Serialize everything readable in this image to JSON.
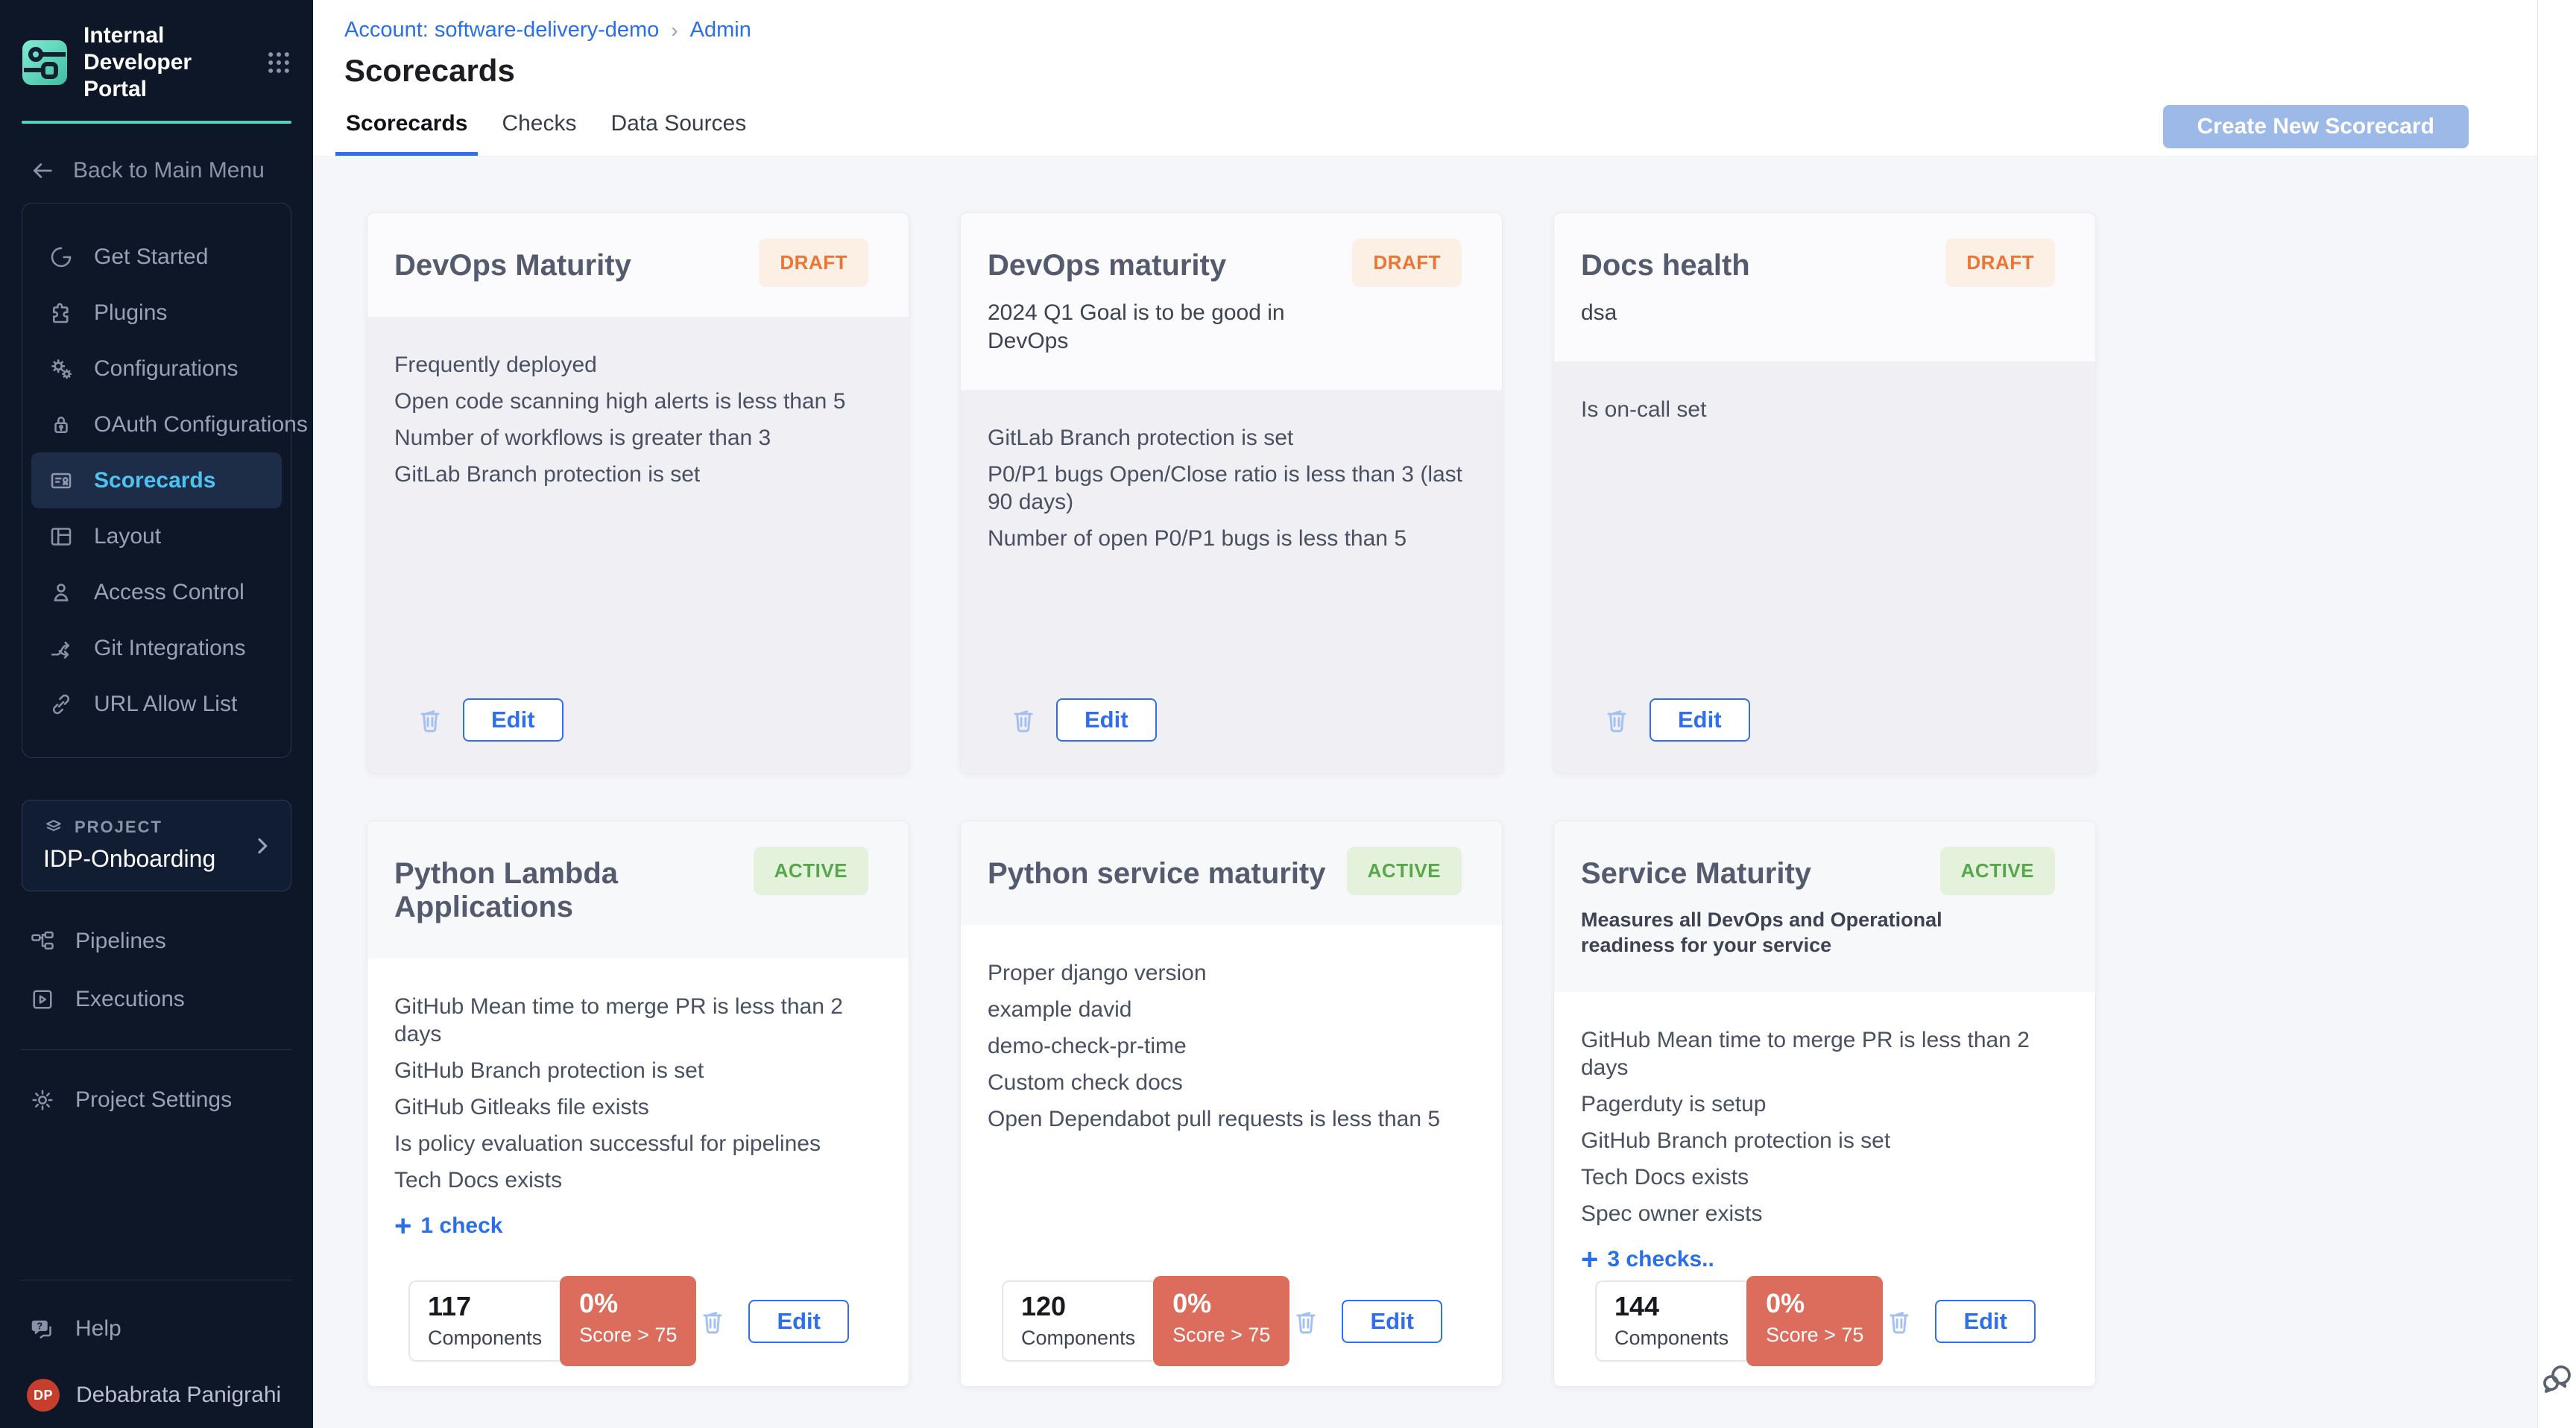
{
  "app": {
    "brand": "Internal Developer Portal",
    "back_label": "Back to Main Menu"
  },
  "sidebar": {
    "nav": [
      {
        "label": "Get Started",
        "icon": "get-started-icon",
        "active": false
      },
      {
        "label": "Plugins",
        "icon": "plugins-icon",
        "active": false
      },
      {
        "label": "Configurations",
        "icon": "configurations-icon",
        "active": false
      },
      {
        "label": "OAuth Configurations",
        "icon": "oauth-icon",
        "active": false
      },
      {
        "label": "Scorecards",
        "icon": "scorecards-icon",
        "active": true
      },
      {
        "label": "Layout",
        "icon": "layout-icon",
        "active": false
      },
      {
        "label": "Access Control",
        "icon": "access-control-icon",
        "active": false
      },
      {
        "label": "Git Integrations",
        "icon": "git-integrations-icon",
        "active": false
      },
      {
        "label": "URL Allow List",
        "icon": "url-allow-list-icon",
        "active": false
      }
    ],
    "project": {
      "label": "PROJECT",
      "name": "IDP-Onboarding",
      "icon": "layers-icon"
    },
    "project_nav": [
      {
        "label": "Pipelines",
        "icon": "pipelines-icon",
        "active": false
      },
      {
        "label": "Executions",
        "icon": "executions-icon",
        "active": false
      }
    ],
    "settings_nav": [
      {
        "label": "Project Settings",
        "icon": "project-settings-icon",
        "active": false
      }
    ],
    "help_nav": [
      {
        "label": "Help",
        "icon": "help-icon",
        "active": false
      }
    ],
    "user": {
      "initials": "DP",
      "name": "Debabrata Panigrahi"
    }
  },
  "header": {
    "breadcrumb": [
      "Account: software-delivery-demo",
      "Admin"
    ],
    "title": "Scorecards"
  },
  "tabs": [
    {
      "label": "Scorecards",
      "active": true
    },
    {
      "label": "Checks",
      "active": false
    },
    {
      "label": "Data Sources",
      "active": false
    }
  ],
  "labels": {
    "create_button": "Create New Scorecard",
    "edit": "Edit"
  },
  "cards": [
    {
      "title": "DevOps Maturity",
      "status": "DRAFT",
      "subtitle": "",
      "subtitle_bold": false,
      "checks": [
        "Frequently deployed",
        "Open code scanning high alerts is less than 5",
        "Number of workflows is greater than 3",
        "GitLab Branch protection is set"
      ],
      "more": null,
      "stats": null
    },
    {
      "title": "DevOps maturity",
      "status": "DRAFT",
      "subtitle": "2024 Q1 Goal is to be good in DevOps",
      "subtitle_bold": false,
      "checks": [
        "GitLab Branch protection is set",
        "P0/P1 bugs Open/Close ratio is less than 3 (last 90 days)",
        "Number of open P0/P1 bugs is less than 5"
      ],
      "more": null,
      "stats": null
    },
    {
      "title": "Docs health",
      "status": "DRAFT",
      "subtitle": "dsa",
      "subtitle_bold": false,
      "checks": [
        "Is on-call set"
      ],
      "more": null,
      "stats": null
    },
    {
      "title": "Python Lambda Applications",
      "status": "ACTIVE",
      "subtitle": "",
      "subtitle_bold": false,
      "checks": [
        "GitHub Mean time to merge PR is less than 2 days",
        "GitHub Branch protection is set",
        "GitHub Gitleaks file exists",
        "Is policy evaluation successful for pipelines",
        "Tech Docs exists"
      ],
      "more": "1 check",
      "stats": {
        "components": "117",
        "components_label": "Components",
        "score": "0%",
        "score_label": "Score > 75"
      }
    },
    {
      "title": "Python service maturity",
      "status": "ACTIVE",
      "subtitle": "",
      "subtitle_bold": false,
      "checks": [
        "Proper django version",
        "example david",
        "demo-check-pr-time",
        "Custom check docs",
        "Open Dependabot pull requests is less than 5"
      ],
      "more": null,
      "stats": {
        "components": "120",
        "components_label": "Components",
        "score": "0%",
        "score_label": "Score > 75"
      }
    },
    {
      "title": "Service Maturity",
      "status": "ACTIVE",
      "subtitle": "Measures all DevOps and Operational readiness for your service",
      "subtitle_bold": true,
      "checks": [
        "GitHub Mean time to merge PR is less than 2 days",
        "Pagerduty is setup",
        "GitHub Branch protection is set",
        "Tech Docs exists",
        "Spec owner exists"
      ],
      "more": "3 checks..",
      "stats": {
        "components": "144",
        "components_label": "Components",
        "score": "0%",
        "score_label": "Score > 75"
      }
    }
  ],
  "colors": {
    "accent_blue": "#2F6FED",
    "link_blue": "#2A6FE4",
    "draft_text": "#ED7435",
    "draft_bg": "#FCEFE4",
    "active_text": "#57A74B",
    "active_bg": "#E4F2DC",
    "score_chip_bg": "#DC6C5C",
    "sidebar_bg": "#0D1727",
    "sidebar_active_text": "#4EC3F2",
    "brand_teal": "#4FD6B8",
    "avatar_bg": "#C73E2C",
    "create_button_bg": "#9DB9E8"
  }
}
